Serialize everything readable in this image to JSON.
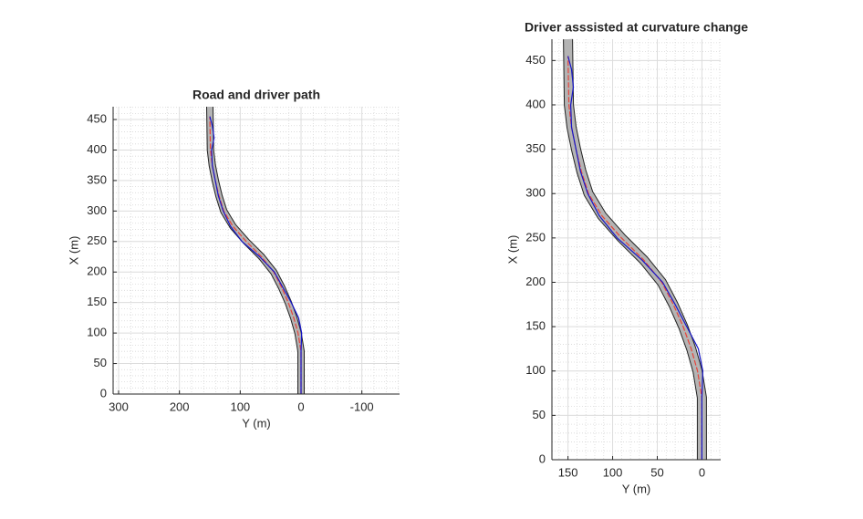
{
  "chart_data": [
    {
      "type": "line",
      "title": "Road and driver path",
      "xlabel": "Y (m)",
      "ylabel": "X (m)",
      "xlim": [
        309,
        -162
      ],
      "ylim": [
        0,
        471
      ],
      "xticks": [
        300,
        200,
        100,
        0,
        -100
      ],
      "yticks": [
        0,
        50,
        100,
        150,
        200,
        250,
        300,
        350,
        400,
        450
      ],
      "grid": true,
      "minor_grid": true,
      "series": [
        {
          "color": "#b4b4b4",
          "x": [
            0,
            0,
            5,
            12,
            21,
            32,
            45,
            65,
            90,
            112,
            127,
            135,
            141,
            146,
            149,
            150
          ],
          "values": [
            0,
            70,
            100,
            125,
            150,
            175,
            200,
            225,
            250,
            275,
            300,
            325,
            350,
            375,
            400,
            471
          ]
        },
        {
          "color": "#e8433a",
          "x": [
            0,
            0,
            5,
            12,
            21,
            32,
            45,
            65,
            90,
            112,
            127,
            135,
            141,
            146,
            149,
            150
          ],
          "values": [
            0,
            70,
            100,
            125,
            150,
            175,
            200,
            225,
            250,
            275,
            300,
            325,
            350,
            375,
            400,
            455
          ]
        },
        {
          "color": "#1515c8",
          "x": [
            0,
            0,
            -1,
            4,
            16,
            30,
            44,
            68,
            97,
            116,
            128,
            136,
            141,
            146,
            147,
            143,
            146,
            150
          ],
          "values": [
            0,
            70,
            100,
            125,
            150,
            175,
            200,
            225,
            250,
            275,
            300,
            325,
            350,
            375,
            400,
            420,
            440,
            455
          ]
        }
      ]
    },
    {
      "type": "line",
      "title": "Driver asssisted at curvature change",
      "xlabel": "Y (m)",
      "ylabel": "X (m)",
      "xlim": [
        168,
        -21
      ],
      "ylim": [
        0,
        474
      ],
      "xticks": [
        150,
        100,
        50,
        0
      ],
      "yticks": [
        0,
        50,
        100,
        150,
        200,
        250,
        300,
        350,
        400,
        450
      ],
      "grid": true,
      "minor_grid": true,
      "series": [
        {
          "color": "#b4b4b4",
          "x": [
            0,
            0,
            5,
            12,
            21,
            32,
            45,
            65,
            90,
            112,
            127,
            135,
            141,
            146,
            149,
            150
          ],
          "values": [
            0,
            70,
            100,
            125,
            150,
            175,
            200,
            225,
            250,
            275,
            300,
            325,
            350,
            375,
            400,
            474
          ]
        },
        {
          "color": "#e8433a",
          "x": [
            0,
            0,
            5,
            12,
            21,
            32,
            45,
            65,
            90,
            112,
            127,
            135,
            141,
            146,
            149,
            150
          ],
          "values": [
            0,
            70,
            100,
            125,
            150,
            175,
            200,
            225,
            250,
            275,
            300,
            325,
            350,
            375,
            400,
            455
          ]
        },
        {
          "color": "#1515c8",
          "x": [
            0,
            0,
            -1,
            4,
            17,
            30,
            44,
            67,
            95,
            115,
            128,
            136,
            141,
            146,
            147,
            144,
            146,
            150
          ],
          "values": [
            0,
            70,
            100,
            125,
            150,
            175,
            200,
            225,
            250,
            275,
            300,
            325,
            350,
            375,
            400,
            420,
            440,
            455
          ]
        }
      ]
    }
  ]
}
